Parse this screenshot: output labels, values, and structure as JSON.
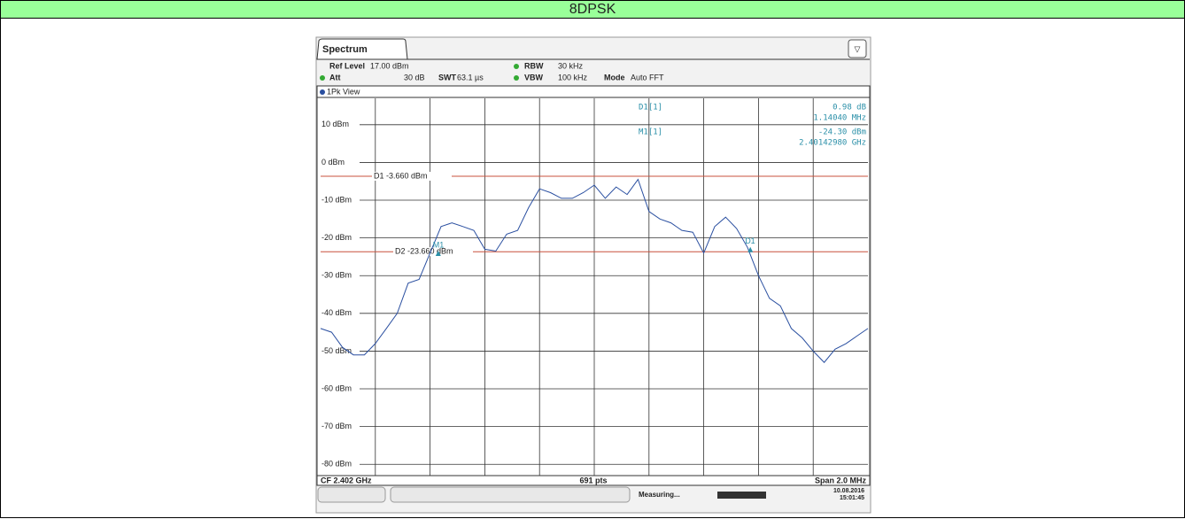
{
  "header": {
    "title": "8DPSK"
  },
  "settings": {
    "tab": "Spectrum",
    "ref_level_label": "Ref Level",
    "ref_level": "17.00 dBm",
    "att_label": "Att",
    "att": "30 dB",
    "swt_label": "SWT",
    "swt": "63.1 µs",
    "rbw_label": "RBW",
    "rbw": "30 kHz",
    "vbw_label": "VBW",
    "vbw": "100 kHz",
    "mode_label": "Mode",
    "mode": "Auto FFT",
    "view": "1Pk View"
  },
  "marker_table": {
    "d1_name": "D1[1]",
    "d1_level": "0.98 dB",
    "d1_freq": "1.14040 MHz",
    "m1_name": "M1[1]",
    "m1_level": "-24.30 dBm",
    "m1_freq": "2.40142980 GHz"
  },
  "footer": {
    "center": "CF 2.402 GHz",
    "points": "691 pts",
    "span": "Span 2.0 MHz",
    "status": "Measuring...",
    "date": "10.08.2016",
    "time": "15:01:45"
  },
  "chart_data": {
    "type": "line",
    "xlim": [
      2.401,
      2.403
    ],
    "ylim": [
      -83,
      17
    ],
    "yticks": [
      {
        "value": 10,
        "label": "10 dBm"
      },
      {
        "value": 0,
        "label": "0 dBm"
      },
      {
        "value": -10,
        "label": "-10 dBm"
      },
      {
        "value": -20,
        "label": "-20 dBm"
      },
      {
        "value": -30,
        "label": "-30 dBm"
      },
      {
        "value": -40,
        "label": "-40 dBm"
      },
      {
        "value": -50,
        "label": "-50 dBm"
      },
      {
        "value": -60,
        "label": "-60 dBm"
      },
      {
        "value": -70,
        "label": "-70 dBm"
      },
      {
        "value": -80,
        "label": "-80 dBm"
      }
    ],
    "xgrid": 10,
    "grid": true,
    "series": [
      {
        "name": "1Pk View",
        "color": "#2a4fa0",
        "values": [
          -44,
          -45,
          -49,
          -51,
          -51,
          -48,
          -44,
          -40,
          -32,
          -31,
          -24,
          -17,
          -16,
          -17,
          -18,
          -23,
          -23.5,
          -19,
          -18,
          -12,
          -7,
          -8,
          -9.5,
          -9.5,
          -8,
          -6,
          -9.5,
          -6.5,
          -8.5,
          -4.5,
          -13,
          -15,
          -16,
          -18,
          -18.5,
          -24,
          -17,
          -14.5,
          -17.5,
          -22.5,
          -30,
          -36,
          -38,
          -44,
          -46.5,
          -50,
          -53,
          -49.5,
          -48,
          -46,
          -44
        ]
      }
    ],
    "lines": [
      {
        "value": -3.66,
        "label": "D1 -3.660 dBm",
        "color": "#c8503c"
      },
      {
        "value": -23.66,
        "label": "D2 -23.660 dBm",
        "color": "#c8503c"
      }
    ],
    "markers": [
      {
        "label": "M1",
        "x": 2.4014298,
        "value": -24.3
      },
      {
        "label": "D1",
        "x": 2.4025702,
        "value": -23.32
      }
    ]
  }
}
